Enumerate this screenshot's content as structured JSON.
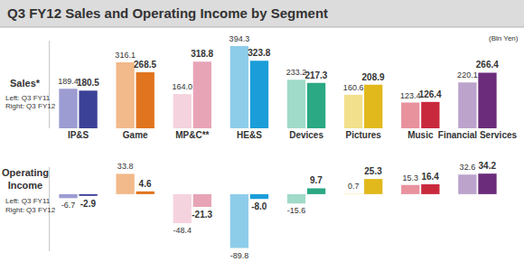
{
  "title": "Q3 FY12 Sales and Operating Income by Segment",
  "chart_data": [
    {
      "type": "bar",
      "title": "Sales*",
      "annotations": [
        "(Bln Yen)"
      ],
      "categories": [
        "IP&S",
        "Game",
        "MP&C**",
        "HE&S",
        "Devices",
        "Pictures",
        "Music",
        "Financial Services"
      ],
      "series": [
        {
          "name": "Left: Q3 FY11",
          "colors": [
            "#9c9cd2",
            "#f2b98a",
            "#f5d3de",
            "#8ecdea",
            "#a0dac8",
            "#f3e08c",
            "#e8929e",
            "#bba3cc"
          ],
          "values": [
            189.4,
            316.1,
            164.0,
            394.3,
            233.2,
            160.6,
            123.4,
            220.1
          ],
          "value_labels": [
            "189.4",
            "316.1",
            "164.0",
            "394.3",
            "233.2",
            "160.6",
            "123.4",
            "220.1"
          ]
        },
        {
          "name": "Right: Q3 FY12",
          "colors": [
            "#3b4196",
            "#e0741f",
            "#e8a4b7",
            "#1b9dd9",
            "#2ba884",
            "#e1b91d",
            "#c9293d",
            "#6b2d7b"
          ],
          "values": [
            180.5,
            268.5,
            318.8,
            323.8,
            217.3,
            208.9,
            126.4,
            266.4
          ]
        }
      ],
      "ylim": [
        0,
        420
      ],
      "yticks": [],
      "data_labels": true,
      "tick_labels": "x"
    },
    {
      "type": "bar",
      "title": "Operating Income",
      "categories": [
        "IP&S",
        "Game",
        "MP&C**",
        "HE&S",
        "Devices",
        "Pictures",
        "Music",
        "Financial Services"
      ],
      "series": [
        {
          "name": "Left: Q3 FY11",
          "colors": [
            "#9c9cd2",
            "#f2b98a",
            "#f5d3de",
            "#8ecdea",
            "#a0dac8",
            "#f3e08c",
            "#e8929e",
            "#bba3cc"
          ],
          "values": [
            -6.7,
            33.8,
            -48.4,
            -89.8,
            -15.6,
            0.7,
            15.3,
            32.6
          ]
        },
        {
          "name": "Right: Q3 FY12",
          "colors": [
            "#3b4196",
            "#e0741f",
            "#e8a4b7",
            "#1b9dd9",
            "#2ba884",
            "#e1b91d",
            "#c9293d",
            "#6b2d7b"
          ],
          "values": [
            -2.9,
            4.6,
            -21.3,
            -8.0,
            9.7,
            25.3,
            16.4,
            34.2
          ],
          "value_labels": [
            "-2.9",
            "4.6",
            "-21.3",
            "-8.0",
            "9.7",
            "25.3",
            "16.4",
            "34.2"
          ]
        }
      ],
      "ylim": [
        -95,
        45
      ],
      "yticks": [],
      "data_labels": true,
      "tick_labels": false
    }
  ]
}
